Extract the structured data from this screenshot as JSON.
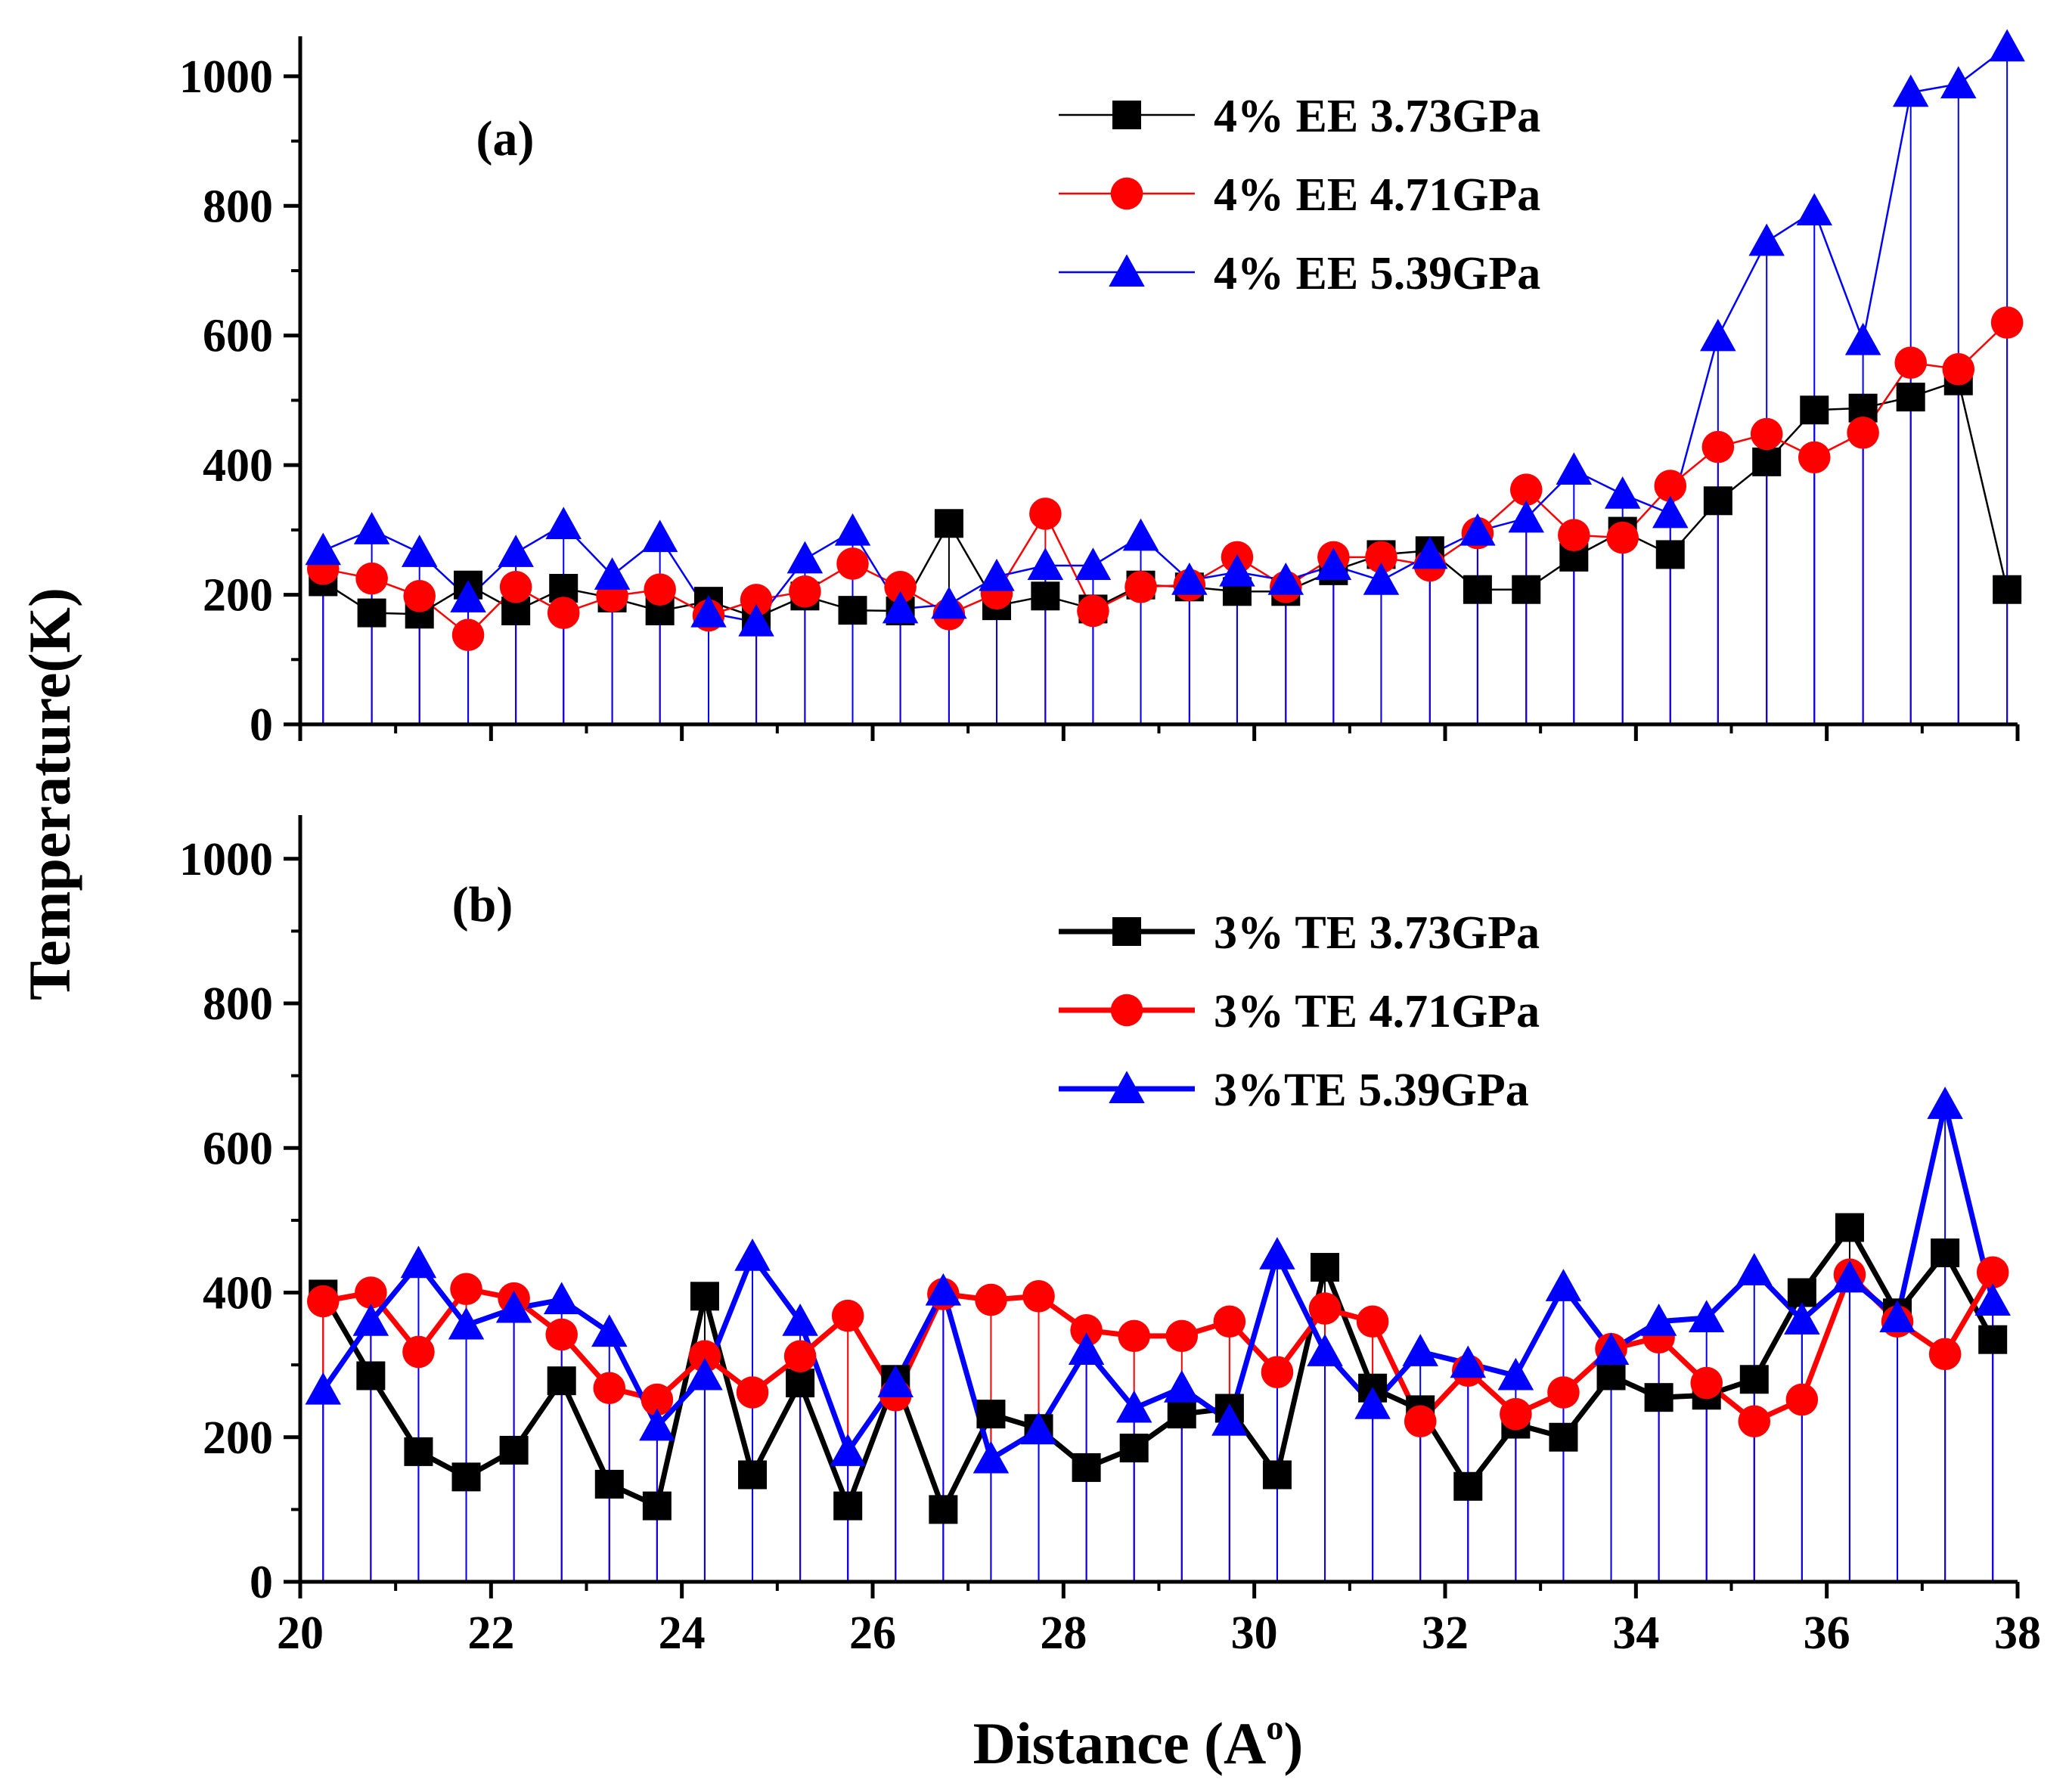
{
  "chart_data": [
    {
      "type": "line",
      "panel_label": "(a)",
      "x_range": [
        20,
        38
      ],
      "ylim": [
        0,
        1050
      ],
      "yticks": [
        0,
        200,
        400,
        600,
        800,
        1000
      ],
      "line_width": "thin",
      "series": [
        {
          "name": "4% EE 3.73GPa",
          "color": "#000000",
          "marker": "square",
          "x": [
            20.24,
            20.75,
            21.25,
            21.76,
            22.26,
            22.76,
            23.27,
            23.77,
            24.28,
            24.78,
            25.29,
            25.79,
            26.29,
            26.8,
            27.3,
            27.81,
            28.31,
            28.81,
            29.32,
            29.82,
            30.33,
            30.83,
            31.33,
            31.84,
            32.34,
            32.85,
            33.35,
            33.86,
            34.36,
            34.86,
            35.37,
            35.87,
            36.38,
            36.88,
            37.38,
            37.89
          ],
          "y": [
            220,
            172,
            170,
            215,
            175,
            210,
            195,
            175,
            190,
            165,
            198,
            176,
            175,
            310,
            183,
            198,
            178,
            215,
            212,
            205,
            205,
            237,
            262,
            268,
            208,
            208,
            258,
            298,
            262,
            345,
            405,
            485,
            488,
            505,
            530,
            208
          ]
        },
        {
          "name": "4% EE 4.71GPa",
          "color": "#ff0000",
          "marker": "circle",
          "x": [
            20.24,
            20.75,
            21.25,
            21.76,
            22.26,
            22.76,
            23.27,
            23.77,
            24.28,
            24.78,
            25.29,
            25.79,
            26.29,
            26.8,
            27.3,
            27.81,
            28.31,
            28.81,
            29.32,
            29.82,
            30.33,
            30.83,
            31.33,
            31.84,
            32.34,
            32.85,
            33.35,
            33.86,
            34.36,
            34.86,
            35.37,
            35.87,
            36.38,
            36.88,
            37.38,
            37.89
          ],
          "y": [
            240,
            225,
            198,
            138,
            212,
            172,
            198,
            208,
            168,
            192,
            205,
            248,
            212,
            170,
            202,
            325,
            175,
            212,
            215,
            258,
            212,
            258,
            258,
            245,
            295,
            362,
            292,
            288,
            368,
            428,
            448,
            412,
            450,
            558,
            548,
            620
          ]
        },
        {
          "name": "4% EE 5.39GPa",
          "color": "#0000ff",
          "marker": "triangle",
          "x": [
            20.24,
            20.75,
            21.25,
            21.76,
            22.26,
            22.76,
            23.27,
            23.77,
            24.28,
            24.78,
            25.29,
            25.79,
            26.29,
            26.8,
            27.3,
            27.81,
            28.31,
            28.81,
            29.32,
            29.82,
            30.33,
            30.83,
            31.33,
            31.84,
            32.34,
            32.85,
            33.35,
            33.86,
            34.36,
            34.86,
            35.37,
            35.87,
            36.38,
            36.88,
            37.38,
            37.89
          ],
          "y": [
            268,
            300,
            265,
            195,
            265,
            308,
            230,
            288,
            172,
            158,
            255,
            298,
            178,
            185,
            228,
            245,
            245,
            290,
            222,
            235,
            222,
            245,
            222,
            262,
            298,
            318,
            392,
            355,
            325,
            598,
            745,
            792,
            592,
            975,
            988,
            1045
          ]
        }
      ]
    },
    {
      "type": "line",
      "panel_label": "(b)",
      "xlabel": "Distance (A",
      "xlabel_superscript": "o",
      "xlabel_suffix": ")",
      "x_range": [
        20,
        38
      ],
      "xticks": [
        20,
        22,
        24,
        26,
        28,
        30,
        32,
        34,
        36,
        38
      ],
      "ylim": [
        0,
        1050
      ],
      "yticks": [
        0,
        200,
        400,
        600,
        800,
        1000
      ],
      "line_width": "thick",
      "series": [
        {
          "name": "3% TE 3.73GPa",
          "color": "#000000",
          "marker": "square",
          "x": [
            20.24,
            20.74,
            21.24,
            21.74,
            22.24,
            22.74,
            23.24,
            23.74,
            24.24,
            24.74,
            25.24,
            25.74,
            26.24,
            26.74,
            27.24,
            27.74,
            28.24,
            28.74,
            29.24,
            29.74,
            30.24,
            30.74,
            31.24,
            31.74,
            32.24,
            32.74,
            33.24,
            33.74,
            34.24,
            34.74,
            35.24,
            35.74,
            36.24,
            36.74,
            37.24,
            37.74
          ],
          "y": [
            398,
            285,
            180,
            145,
            182,
            278,
            135,
            105,
            395,
            148,
            275,
            105,
            280,
            100,
            232,
            212,
            158,
            185,
            232,
            240,
            148,
            435,
            268,
            238,
            132,
            218,
            200,
            285,
            255,
            258,
            280,
            400,
            490,
            372,
            455,
            335
          ]
        },
        {
          "name": "3% TE 4.71GPa",
          "color": "#ff0000",
          "marker": "circle",
          "x": [
            20.24,
            20.74,
            21.24,
            21.74,
            22.24,
            22.74,
            23.24,
            23.74,
            24.24,
            24.74,
            25.24,
            25.74,
            26.24,
            26.74,
            27.24,
            27.74,
            28.24,
            28.74,
            29.24,
            29.74,
            30.24,
            30.74,
            31.24,
            31.74,
            32.24,
            32.74,
            33.24,
            33.74,
            34.24,
            34.74,
            35.24,
            35.74,
            36.24,
            36.74,
            37.24,
            37.74
          ],
          "y": [
            388,
            400,
            318,
            405,
            392,
            342,
            268,
            252,
            312,
            262,
            312,
            368,
            258,
            398,
            390,
            395,
            348,
            340,
            340,
            360,
            290,
            378,
            360,
            222,
            292,
            232,
            262,
            322,
            338,
            275,
            222,
            252,
            425,
            360,
            315,
            428
          ]
        },
        {
          "name": "3%TE 5.39GPa",
          "color": "#0000ff",
          "marker": "triangle",
          "x": [
            20.24,
            20.74,
            21.24,
            21.74,
            22.24,
            22.74,
            23.24,
            23.74,
            24.24,
            24.74,
            25.24,
            25.74,
            26.24,
            26.74,
            27.24,
            27.74,
            28.24,
            28.74,
            29.24,
            29.74,
            30.24,
            30.74,
            31.24,
            31.74,
            32.24,
            32.74,
            33.24,
            33.74,
            34.24,
            34.74,
            35.24,
            35.74,
            36.24,
            36.74,
            37.24,
            37.74
          ],
          "y": [
            265,
            360,
            440,
            355,
            378,
            390,
            345,
            215,
            285,
            450,
            360,
            180,
            275,
            402,
            170,
            210,
            320,
            240,
            268,
            222,
            452,
            318,
            245,
            318,
            302,
            285,
            408,
            320,
            360,
            365,
            430,
            362,
            420,
            365,
            660,
            388
          ]
        }
      ]
    }
  ],
  "shared": {
    "ylabel": "Temperature(K)"
  }
}
